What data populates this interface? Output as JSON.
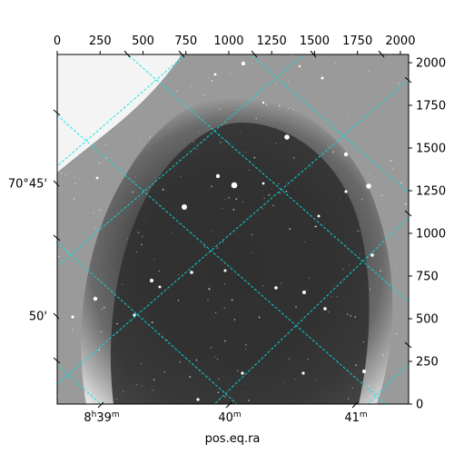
{
  "figure": {
    "xlabel": "pos.eq.ra",
    "pixel_axes": {
      "x_ticks": [
        "0",
        "250",
        "500",
        "750",
        "1000",
        "1250",
        "1500",
        "1750",
        "2000"
      ],
      "y_ticks": [
        "0",
        "250",
        "500",
        "750",
        "1000",
        "1250",
        "1500",
        "1750",
        "2000"
      ]
    },
    "world_axes": {
      "ra_ticks": [
        "8h39m",
        "40m",
        "41m"
      ],
      "dec_ticks": [
        "70°45'",
        "50'"
      ]
    },
    "grid_color": "#00e5e5",
    "image": {
      "kind": "grayscale astronomical image",
      "background": "dark rounded region in center, lighter gray towards edges, white upper-left corner"
    }
  }
}
